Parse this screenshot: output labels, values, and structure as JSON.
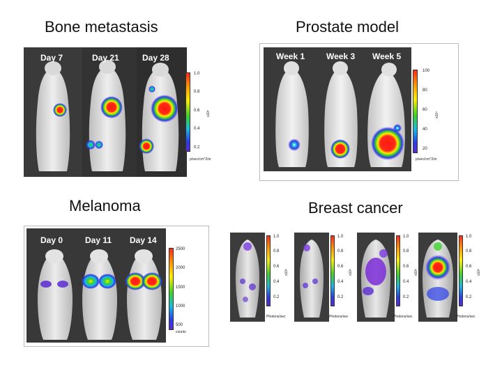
{
  "titles": {
    "bone": "Bone metastasis",
    "prostate": "Prostate model",
    "melanoma": "Melanoma",
    "breast": "Breast cancer"
  },
  "bone": {
    "timepoints": [
      "Day 7",
      "Day 21",
      "Day 28"
    ],
    "ticks": [
      "1.0",
      "0.8",
      "0.6",
      "0.4",
      "0.2"
    ],
    "scale_exp": "x10⁶",
    "unit": "p/sec/cm^2/sr"
  },
  "prostate": {
    "timepoints": [
      "Week 1",
      "Week 3",
      "Week 5"
    ],
    "ticks": [
      "100",
      "80",
      "60",
      "40",
      "20"
    ],
    "scale_exp": "x10⁴",
    "unit": "p/sec/cm^2/sr"
  },
  "melanoma": {
    "timepoints": [
      "Day 0",
      "Day 11",
      "Day 14"
    ],
    "ticks": [
      "2500",
      "2000",
      "1500",
      "1000",
      "500"
    ],
    "unit": "counts"
  },
  "breast": {
    "ticks": [
      "1.0",
      "0.8",
      "0.6",
      "0.4",
      "0.2"
    ],
    "scale_exp": "x10⁶",
    "unit": "Photons/sec"
  },
  "colors": {
    "background": "#ffffff",
    "panel_dark": "#2b2b2b",
    "signal_high": "#ff2a1a",
    "signal_mid": "#3ed12a",
    "signal_low": "#2a3de8"
  }
}
